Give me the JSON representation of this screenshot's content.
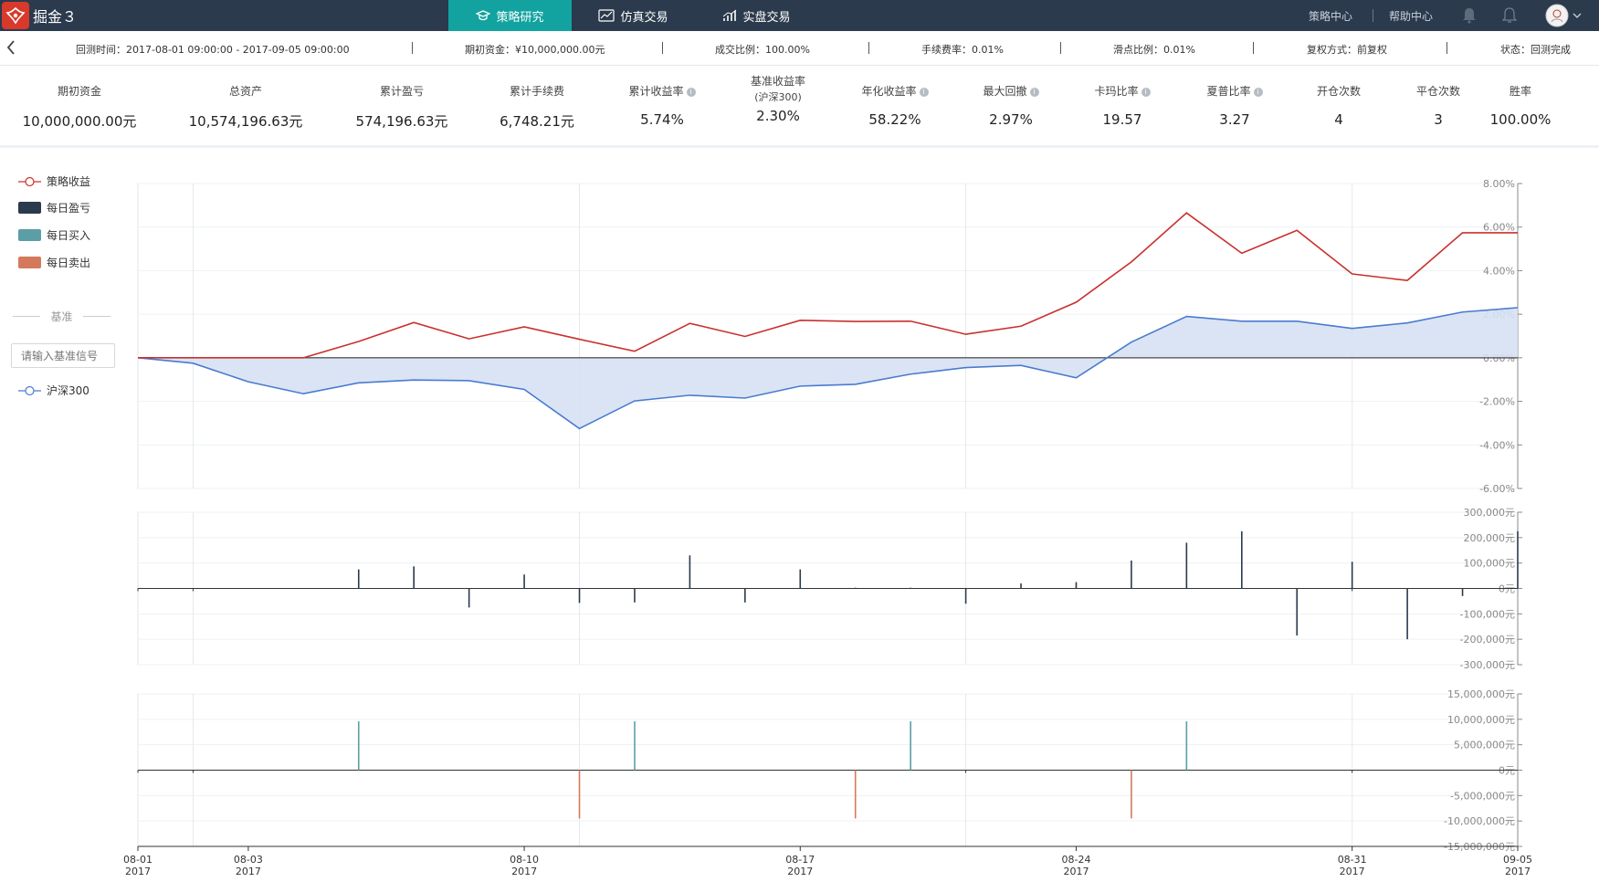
{
  "app": {
    "logo_text": "掘金３"
  },
  "nav": {
    "tabs": [
      {
        "label": "策略研究",
        "icon": "graduation-cap-icon",
        "active": true
      },
      {
        "label": "仿真交易",
        "icon": "line-chart-icon",
        "active": false
      },
      {
        "label": "实盘交易",
        "icon": "bar-chart-icon",
        "active": false
      }
    ]
  },
  "top_right": {
    "strategy_center": "策略中心",
    "help_center": "帮助中心"
  },
  "info_bar": {
    "backtest_time": "回测时间：2017-08-01 09:00:00 - 2017-09-05 09:00:00",
    "initial_capital": "期初资金：¥10,000,000.00元",
    "fill_ratio": "成交比例：100.00%",
    "commission": "手续费率：0.01%",
    "slippage": "滑点比例：0.01%",
    "adjust": "复权方式：前复权",
    "status": "状态：回测完成"
  },
  "stats": [
    {
      "label": "期初资金",
      "value": "10,000,000.00元",
      "info": false
    },
    {
      "label": "总资产",
      "value": "10,574,196.63元",
      "info": false
    },
    {
      "label": "累计盈亏",
      "value": "574,196.63元",
      "info": false
    },
    {
      "label": "累计手续费",
      "value": "6,748.21元",
      "info": false
    },
    {
      "label": "累计收益率",
      "value": "5.74%",
      "info": true
    },
    {
      "label": "基准收益率",
      "sublabel": "(沪深300)",
      "value": "2.30%",
      "info": false
    },
    {
      "label": "年化收益率",
      "value": "58.22%",
      "info": true
    },
    {
      "label": "最大回撤",
      "value": "2.97%",
      "info": true
    },
    {
      "label": "卡玛比率",
      "value": "19.57",
      "info": true
    },
    {
      "label": "夏普比率",
      "value": "3.27",
      "info": true
    },
    {
      "label": "开仓次数",
      "value": "4",
      "info": false
    },
    {
      "label": "平仓次数",
      "value": "3",
      "info": false
    },
    {
      "label": "胜率",
      "value": "100.00%",
      "info": false
    }
  ],
  "legend": {
    "items": [
      {
        "label": "策略收益",
        "color": "#c9302c",
        "type": "line"
      },
      {
        "label": "每日盈亏",
        "color": "#2b3a4d",
        "type": "box"
      },
      {
        "label": "每日买入",
        "color": "#5c9ea6",
        "type": "box"
      },
      {
        "label": "每日卖出",
        "color": "#d47a5c",
        "type": "box"
      }
    ],
    "benchmark_title": "基准",
    "benchmark_input_placeholder": "请输入基准信号",
    "benchmark": {
      "label": "沪深300",
      "color": "#4a7bd0"
    }
  },
  "chart_data": [
    {
      "type": "line",
      "title": "",
      "y_unit": "%",
      "ylim": [
        -6,
        8
      ],
      "yticks": [
        "8.00%",
        "6.00%",
        "4.00%",
        "2.00%",
        "0.00%",
        "-2.00%",
        "-4.00%",
        "-6.00%"
      ],
      "x": [
        "08-01",
        "08-02",
        "08-03",
        "08-04",
        "08-07",
        "08-08",
        "08-09",
        "08-10",
        "08-11",
        "08-14",
        "08-15",
        "08-16",
        "08-17",
        "08-18",
        "08-21",
        "08-22",
        "08-23",
        "08-24",
        "08-25",
        "08-28",
        "08-29",
        "08-30",
        "08-31",
        "09-01",
        "09-04",
        "09-05"
      ],
      "series": [
        {
          "name": "策略收益",
          "color": "#c9302c",
          "values": [
            0,
            0,
            0,
            0,
            0.75,
            1.62,
            0.87,
            1.42,
            0.85,
            0.3,
            1.58,
            0.98,
            1.72,
            1.67,
            1.68,
            1.08,
            1.45,
            2.55,
            4.4,
            6.65,
            4.8,
            5.85,
            3.85,
            3.55,
            5.74,
            5.74
          ]
        },
        {
          "name": "沪深300",
          "color": "#4a7bd0",
          "fill": "#d6e1f3",
          "values": [
            0,
            -0.25,
            -1.1,
            -1.65,
            -1.15,
            -1.02,
            -1.05,
            -1.45,
            -3.25,
            -1.98,
            -1.72,
            -1.85,
            -1.3,
            -1.22,
            -0.75,
            -0.45,
            -0.35,
            -0.92,
            0.72,
            1.9,
            1.68,
            1.68,
            1.35,
            1.6,
            2.1,
            2.3
          ]
        }
      ]
    },
    {
      "type": "bar",
      "title": "",
      "ylim": [
        -300000,
        300000
      ],
      "yticks": [
        "300,000元",
        "200,000元",
        "100,000元",
        "0元",
        "-100,000元",
        "-200,000元",
        "-300,000元"
      ],
      "series": [
        {
          "name": "每日盈亏",
          "color": "#2b3a4d",
          "values": [
            0,
            0,
            0,
            0,
            75000,
            87000,
            -75000,
            55000,
            -57000,
            -55000,
            130000,
            -55000,
            75000,
            3000,
            3000,
            -60000,
            20000,
            25000,
            110000,
            180000,
            225000,
            -185000,
            105000,
            -200000,
            -30000,
            225000
          ]
        }
      ]
    },
    {
      "type": "bar",
      "title": "",
      "ylim": [
        -15000000,
        15000000
      ],
      "yticks": [
        "15,000,000元",
        "10,000,000元",
        "5,000,000元",
        "0元",
        "-5,000,000元",
        "-10,000,000元",
        "-15,000,000元"
      ],
      "series": [
        {
          "name": "每日买入",
          "color": "#5c9ea6",
          "values": [
            0,
            0,
            0,
            0,
            9600000,
            0,
            0,
            0,
            0,
            9600000,
            0,
            0,
            0,
            0,
            9600000,
            0,
            0,
            0,
            0,
            9600000,
            0,
            0,
            0,
            0,
            0,
            0
          ]
        },
        {
          "name": "每日卖出",
          "color": "#d47a5c",
          "values": [
            0,
            0,
            0,
            0,
            0,
            0,
            0,
            0,
            -9500000,
            0,
            0,
            0,
            0,
            -9500000,
            0,
            0,
            0,
            0,
            -9500000,
            0,
            0,
            0,
            0,
            0,
            0,
            0
          ]
        }
      ],
      "x_axis_labels": [
        {
          "date": "08-01",
          "year": "2017"
        },
        {
          "date": "08-03",
          "year": "2017"
        },
        {
          "date": "08-10",
          "year": "2017"
        },
        {
          "date": "08-17",
          "year": "2017"
        },
        {
          "date": "08-24",
          "year": "2017"
        },
        {
          "date": "08-31",
          "year": "2017"
        },
        {
          "date": "09-05",
          "year": "2017"
        }
      ]
    }
  ]
}
